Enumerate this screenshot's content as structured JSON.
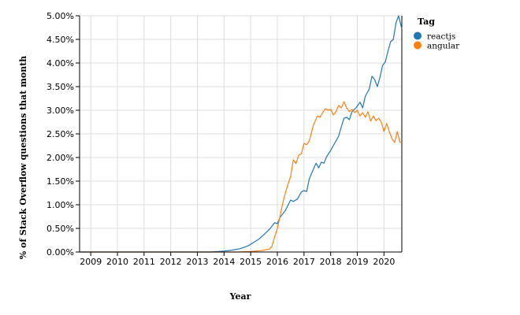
{
  "chart_data": {
    "type": "line",
    "xlabel": "Year",
    "ylabel": "% of Stack Overflow questions that month",
    "xlim": [
      2008.58,
      2020.67
    ],
    "ylim": [
      0,
      5
    ],
    "x_ticks": [
      "2009",
      "2010",
      "2011",
      "2012",
      "2013",
      "2014",
      "2015",
      "2016",
      "2017",
      "2018",
      "2019",
      "2020"
    ],
    "y_ticks": [
      "0.00%",
      "0.50%",
      "1.00%",
      "1.50%",
      "2.00%",
      "2.50%",
      "3.00%",
      "3.50%",
      "4.00%",
      "4.50%",
      "5.00%"
    ],
    "grid": true,
    "legend": {
      "title": "Tag",
      "position": "top-right"
    },
    "series": [
      {
        "name": "reactjs",
        "color": "#1f77b4",
        "points": [
          [
            2008.58,
            0
          ],
          [
            2013.5,
            0
          ],
          [
            2013.8,
            0.01
          ],
          [
            2014.0,
            0.02
          ],
          [
            2014.3,
            0.04
          ],
          [
            2014.6,
            0.07
          ],
          [
            2014.9,
            0.13
          ],
          [
            2015.1,
            0.2
          ],
          [
            2015.3,
            0.27
          ],
          [
            2015.5,
            0.37
          ],
          [
            2015.7,
            0.48
          ],
          [
            2015.9,
            0.62
          ],
          [
            2016.0,
            0.6
          ],
          [
            2016.1,
            0.73
          ],
          [
            2016.3,
            0.88
          ],
          [
            2016.5,
            1.1
          ],
          [
            2016.6,
            1.07
          ],
          [
            2016.75,
            1.12
          ],
          [
            2016.9,
            1.27
          ],
          [
            2017.0,
            1.3
          ],
          [
            2017.1,
            1.28
          ],
          [
            2017.2,
            1.55
          ],
          [
            2017.35,
            1.75
          ],
          [
            2017.45,
            1.88
          ],
          [
            2017.55,
            1.78
          ],
          [
            2017.65,
            1.9
          ],
          [
            2017.75,
            1.88
          ],
          [
            2017.85,
            2.02
          ],
          [
            2018.0,
            2.15
          ],
          [
            2018.15,
            2.3
          ],
          [
            2018.3,
            2.45
          ],
          [
            2018.4,
            2.65
          ],
          [
            2018.5,
            2.83
          ],
          [
            2018.6,
            2.85
          ],
          [
            2018.7,
            2.8
          ],
          [
            2018.8,
            2.97
          ],
          [
            2018.95,
            3.05
          ],
          [
            2019.1,
            3.17
          ],
          [
            2019.2,
            3.05
          ],
          [
            2019.3,
            3.3
          ],
          [
            2019.45,
            3.45
          ],
          [
            2019.55,
            3.72
          ],
          [
            2019.65,
            3.65
          ],
          [
            2019.75,
            3.5
          ],
          [
            2019.85,
            3.7
          ],
          [
            2019.95,
            3.95
          ],
          [
            2020.05,
            4.02
          ],
          [
            2020.15,
            4.25
          ],
          [
            2020.25,
            4.45
          ],
          [
            2020.35,
            4.5
          ],
          [
            2020.45,
            4.85
          ],
          [
            2020.55,
            5.0
          ],
          [
            2020.67,
            4.72
          ]
        ]
      },
      {
        "name": "angular",
        "color": "#ff7f0e",
        "points": [
          [
            2008.58,
            0
          ],
          [
            2014.5,
            0
          ],
          [
            2015.0,
            0.01
          ],
          [
            2015.4,
            0.03
          ],
          [
            2015.7,
            0.06
          ],
          [
            2015.8,
            0.12
          ],
          [
            2015.9,
            0.32
          ],
          [
            2016.0,
            0.5
          ],
          [
            2016.1,
            0.75
          ],
          [
            2016.2,
            1.03
          ],
          [
            2016.3,
            1.25
          ],
          [
            2016.4,
            1.43
          ],
          [
            2016.5,
            1.6
          ],
          [
            2016.6,
            1.95
          ],
          [
            2016.7,
            1.87
          ],
          [
            2016.8,
            2.05
          ],
          [
            2016.9,
            2.08
          ],
          [
            2017.0,
            2.3
          ],
          [
            2017.1,
            2.27
          ],
          [
            2017.2,
            2.35
          ],
          [
            2017.35,
            2.68
          ],
          [
            2017.5,
            2.88
          ],
          [
            2017.6,
            2.85
          ],
          [
            2017.7,
            2.95
          ],
          [
            2017.8,
            3.03
          ],
          [
            2017.9,
            3.0
          ],
          [
            2018.0,
            3.02
          ],
          [
            2018.1,
            2.9
          ],
          [
            2018.2,
            2.97
          ],
          [
            2018.3,
            3.1
          ],
          [
            2018.4,
            3.05
          ],
          [
            2018.5,
            3.18
          ],
          [
            2018.6,
            3.05
          ],
          [
            2018.7,
            2.97
          ],
          [
            2018.8,
            3.02
          ],
          [
            2018.9,
            2.95
          ],
          [
            2019.0,
            3.0
          ],
          [
            2019.1,
            2.88
          ],
          [
            2019.2,
            2.95
          ],
          [
            2019.3,
            2.85
          ],
          [
            2019.4,
            2.97
          ],
          [
            2019.5,
            2.77
          ],
          [
            2019.6,
            2.88
          ],
          [
            2019.7,
            2.78
          ],
          [
            2019.8,
            2.83
          ],
          [
            2019.9,
            2.75
          ],
          [
            2020.0,
            2.55
          ],
          [
            2020.1,
            2.72
          ],
          [
            2020.2,
            2.55
          ],
          [
            2020.3,
            2.4
          ],
          [
            2020.4,
            2.32
          ],
          [
            2020.5,
            2.55
          ],
          [
            2020.6,
            2.32
          ],
          [
            2020.67,
            2.33
          ]
        ]
      }
    ]
  }
}
